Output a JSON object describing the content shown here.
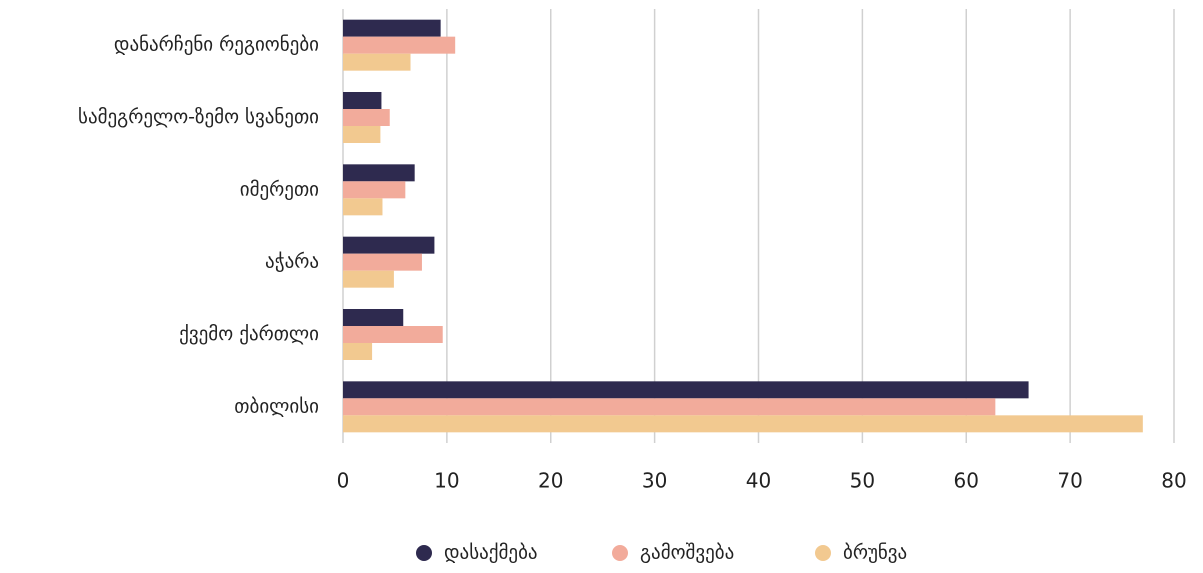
{
  "chart_data": {
    "type": "bar",
    "orientation": "horizontal",
    "categories": [
      "დანარჩენი რეგიონები",
      "სამეგრელო-ზემო სვანეთი",
      "იმერეთი",
      "აჭარა",
      "ქვემო ქართლი",
      "თბილისი"
    ],
    "series": [
      {
        "name": "დასაქმება",
        "color": "#2e2a4f",
        "values": [
          9.4,
          3.7,
          6.9,
          8.8,
          5.8,
          66.0
        ]
      },
      {
        "name": "გამოშვება",
        "color": "#f2ab9b",
        "values": [
          10.8,
          4.5,
          6.0,
          7.6,
          9.6,
          62.8
        ]
      },
      {
        "name": "ბრუნვა",
        "color": "#f2c990",
        "values": [
          6.5,
          3.6,
          3.8,
          4.9,
          2.8,
          77.0
        ]
      }
    ],
    "xlim": [
      0,
      80
    ],
    "xticks": [
      0,
      10,
      20,
      30,
      40,
      50,
      60,
      70,
      80
    ],
    "grid": true,
    "legend": "bottom"
  }
}
